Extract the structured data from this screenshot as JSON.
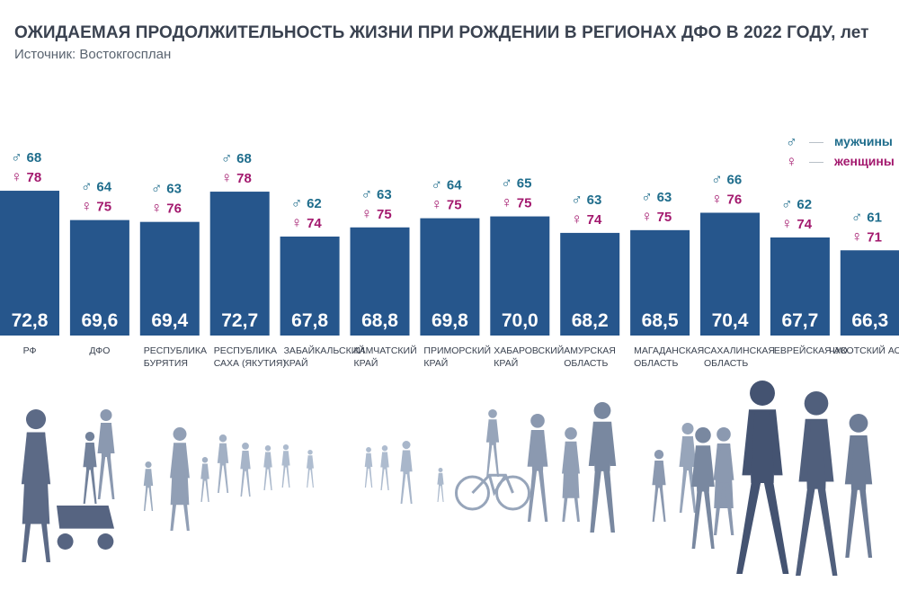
{
  "title": "ОЖИДАЕМАЯ ПРОДОЛЖИТЕЛЬНОСТЬ ЖИЗНИ ПРИ РОЖДЕНИИ В РЕГИОНАХ ДФО В 2022 ГОДУ, лет",
  "subtitle": "Источник: Востокгосплан",
  "legend": {
    "male": {
      "symbol": "♂",
      "label": "мужчины",
      "color": "#1f6d8c"
    },
    "female": {
      "symbol": "♀",
      "label": "женщины",
      "color": "#a3196e"
    }
  },
  "colors": {
    "bar": "#26568c",
    "bar_value_text": "#ffffff",
    "category_text": "#3a4250",
    "silhouette_near": "#3e4d6c",
    "silhouette_far": "#b4c2d4"
  },
  "chart_data": {
    "type": "bar",
    "categories": [
      [
        "РФ"
      ],
      [
        "ДФО"
      ],
      [
        "РЕСПУБЛИКА",
        "БУРЯТИЯ"
      ],
      [
        "РЕСПУБЛИКА",
        "САХА (ЯКУТИЯ)"
      ],
      [
        "ЗАБАЙКАЛЬСКИЙ",
        "КРАЙ"
      ],
      [
        "КАМЧАТСКИЙ",
        "КРАЙ"
      ],
      [
        "ПРИМОРСКИЙ",
        "КРАЙ"
      ],
      [
        "ХАБАРОВСКИЙ",
        "КРАЙ"
      ],
      [
        "АМУРСКАЯ",
        "ОБЛАСТЬ"
      ],
      [
        "МАГАДАНСКАЯ",
        "ОБЛАСТЬ"
      ],
      [
        "САХАЛИНСКАЯ",
        "ОБЛАСТЬ"
      ],
      [
        "ЕВРЕЙСКАЯ АО"
      ],
      [
        "ЧУКОТСКИЙ АО"
      ]
    ],
    "series": [
      {
        "name": "",
        "values": [
          72.8,
          69.6,
          69.4,
          72.7,
          67.8,
          68.8,
          69.8,
          70.0,
          68.2,
          68.5,
          70.4,
          67.7,
          66.3
        ]
      },
      {
        "name": "мужчины",
        "values": [
          68,
          64,
          63,
          68,
          62,
          63,
          64,
          65,
          63,
          63,
          66,
          62,
          61
        ]
      },
      {
        "name": "женщины",
        "values": [
          78,
          75,
          76,
          78,
          74,
          75,
          75,
          75,
          74,
          75,
          76,
          74,
          71
        ]
      }
    ],
    "value_labels": [
      "72,8",
      "69,6",
      "69,4",
      "72,7",
      "67,8",
      "68,8",
      "69,8",
      "70,0",
      "68,2",
      "68,5",
      "70,4",
      "67,7",
      "66,3"
    ],
    "ylim": [
      57,
      73
    ],
    "grid": false
  }
}
